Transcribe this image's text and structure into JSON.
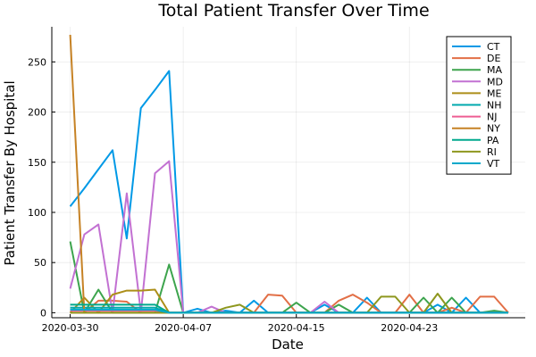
{
  "chart_data": {
    "type": "line",
    "title": "Total Patient Transfer Over Time",
    "xlabel": "Date",
    "ylabel": "Patient Transfer By Hospital",
    "x_tick_labels": [
      "2020-03-30",
      "2020-04-07",
      "2020-04-15",
      "2020-04-23"
    ],
    "x_tick_days": [
      0,
      8,
      16,
      24
    ],
    "x_range_days": [
      0,
      31
    ],
    "y_ticks": [
      0,
      50,
      100,
      150,
      200,
      250
    ],
    "ylim": [
      -5,
      285
    ],
    "grid": true,
    "legend_position": "top-right",
    "series": [
      {
        "name": "CT",
        "color": "#0099e6",
        "x": [
          0,
          1,
          2,
          3,
          4,
          5,
          6,
          7,
          8,
          9,
          10,
          11,
          12,
          13,
          14,
          15,
          16,
          17,
          18,
          19,
          20,
          21,
          22,
          23,
          24,
          25,
          26,
          27,
          28,
          29,
          30,
          31
        ],
        "values": [
          106,
          124,
          143,
          162,
          74,
          204,
          222,
          241,
          0,
          4,
          0,
          2,
          0,
          12,
          0,
          0,
          0,
          0,
          8,
          0,
          0,
          15,
          0,
          0,
          0,
          0,
          8,
          0,
          15,
          0,
          0,
          0
        ]
      },
      {
        "name": "DE",
        "color": "#e26f46",
        "x": [
          0,
          1,
          2,
          3,
          4,
          5,
          6,
          7,
          8,
          9,
          10,
          11,
          12,
          13,
          14,
          15,
          16,
          17,
          18,
          19,
          20,
          21,
          22,
          23,
          24,
          25,
          26,
          27,
          28,
          29,
          30,
          31
        ],
        "values": [
          0,
          0,
          12,
          12,
          11,
          0,
          0,
          0,
          0,
          0,
          0,
          0,
          0,
          0,
          18,
          17,
          0,
          0,
          0,
          12,
          18,
          10,
          0,
          0,
          18,
          0,
          0,
          5,
          0,
          16,
          16,
          0
        ]
      },
      {
        "name": "MA",
        "color": "#3da44d",
        "x": [
          0,
          1,
          2,
          3,
          4,
          5,
          6,
          7,
          8,
          9,
          10,
          11,
          12,
          13,
          14,
          15,
          16,
          17,
          18,
          19,
          20,
          21,
          22,
          23,
          24,
          25,
          26,
          27,
          28,
          29,
          30,
          31
        ],
        "values": [
          71,
          0,
          23,
          0,
          0,
          0,
          0,
          48,
          0,
          0,
          0,
          0,
          0,
          0,
          0,
          0,
          10,
          0,
          0,
          8,
          0,
          0,
          0,
          0,
          0,
          15,
          0,
          15,
          0,
          0,
          2,
          0
        ]
      },
      {
        "name": "MD",
        "color": "#c271d2",
        "x": [
          0,
          1,
          2,
          3,
          4,
          5,
          6,
          7,
          8,
          9,
          10,
          11,
          12,
          13,
          14,
          15,
          16,
          17,
          18,
          19,
          20,
          21,
          22,
          23,
          24,
          25,
          26,
          27,
          28,
          29,
          30,
          31
        ],
        "values": [
          24,
          78,
          88,
          0,
          119,
          0,
          139,
          151,
          0,
          0,
          6,
          0,
          0,
          0,
          0,
          0,
          0,
          0,
          11,
          0,
          0,
          0,
          0,
          0,
          0,
          0,
          0,
          0,
          0,
          0,
          0,
          0
        ]
      },
      {
        "name": "ME",
        "color": "#ac8e18",
        "x": [
          0,
          1,
          2,
          3,
          4,
          5,
          6,
          7,
          8,
          9,
          10,
          11,
          12,
          13,
          14,
          15,
          16,
          17,
          18,
          19,
          20,
          21,
          22,
          23,
          24,
          25,
          26,
          27,
          28,
          29,
          30,
          31
        ],
        "values": [
          0,
          15,
          0,
          18,
          22,
          22,
          23,
          0,
          0,
          0,
          0,
          0,
          0,
          0,
          0,
          0,
          0,
          0,
          0,
          0,
          0,
          0,
          0,
          0,
          0,
          0,
          0,
          0,
          0,
          0,
          0,
          0
        ]
      },
      {
        "name": "NH",
        "color": "#00a9ad",
        "x": [
          0,
          1,
          2,
          3,
          4,
          5,
          6,
          7,
          8,
          9,
          10,
          11,
          12,
          13,
          14,
          15,
          16,
          17,
          18,
          19,
          20,
          21,
          22,
          23,
          24,
          25,
          26,
          27,
          28,
          29,
          30,
          31
        ],
        "values": [
          5,
          5,
          5,
          5,
          5,
          5,
          5,
          0,
          0,
          0,
          0,
          0,
          0,
          0,
          0,
          0,
          0,
          0,
          0,
          0,
          0,
          0,
          0,
          0,
          0,
          0,
          0,
          0,
          0,
          0,
          0,
          0
        ]
      },
      {
        "name": "NJ",
        "color": "#ed5e93",
        "x": [
          0,
          1,
          2,
          3,
          4,
          5,
          6,
          7,
          8,
          9,
          10,
          11,
          12,
          13,
          14,
          15,
          16,
          17,
          18,
          19,
          20,
          21,
          22,
          23,
          24,
          25,
          26,
          27,
          28,
          29,
          30,
          31
        ],
        "values": [
          2,
          2,
          2,
          2,
          2,
          2,
          2,
          0,
          0,
          0,
          0,
          0,
          0,
          0,
          0,
          0,
          0,
          0,
          0,
          0,
          0,
          0,
          0,
          0,
          0,
          0,
          0,
          0,
          0,
          0,
          0,
          0
        ]
      },
      {
        "name": "NY",
        "color": "#c68225",
        "x": [
          0,
          1,
          2,
          3,
          4,
          5,
          6,
          7,
          8,
          9,
          10,
          11,
          12,
          13,
          14,
          15,
          16,
          17,
          18,
          19,
          20,
          21,
          22,
          23,
          24,
          25,
          26,
          27,
          28,
          29,
          30,
          31
        ],
        "values": [
          277,
          0,
          0,
          0,
          0,
          0,
          0,
          0,
          0,
          0,
          0,
          0,
          0,
          0,
          0,
          0,
          0,
          0,
          0,
          0,
          0,
          0,
          0,
          0,
          0,
          0,
          0,
          0,
          0,
          0,
          0,
          0
        ]
      },
      {
        "name": "PA",
        "color": "#00a98d",
        "x": [
          0,
          1,
          2,
          3,
          4,
          5,
          6,
          7,
          8,
          9,
          10,
          11,
          12,
          13,
          14,
          15,
          16,
          17,
          18,
          19,
          20,
          21,
          22,
          23,
          24,
          25,
          26,
          27,
          28,
          29,
          30,
          31
        ],
        "values": [
          8,
          8,
          8,
          8,
          8,
          8,
          8,
          0,
          0,
          0,
          0,
          0,
          0,
          0,
          0,
          0,
          0,
          0,
          0,
          0,
          0,
          0,
          0,
          0,
          0,
          0,
          0,
          0,
          0,
          0,
          0,
          0
        ]
      },
      {
        "name": "RI",
        "color": "#8e971e",
        "x": [
          0,
          1,
          2,
          3,
          4,
          5,
          6,
          7,
          8,
          9,
          10,
          11,
          12,
          13,
          14,
          15,
          16,
          17,
          18,
          19,
          20,
          21,
          22,
          23,
          24,
          25,
          26,
          27,
          28,
          29,
          30,
          31
        ],
        "values": [
          0,
          0,
          0,
          0,
          0,
          0,
          0,
          0,
          0,
          0,
          0,
          5,
          8,
          0,
          0,
          0,
          0,
          0,
          0,
          0,
          0,
          0,
          16,
          16,
          0,
          0,
          19,
          0,
          0,
          0,
          0,
          0
        ]
      },
      {
        "name": "VT",
        "color": "#00a8cb",
        "x": [
          0,
          1,
          2,
          3,
          4,
          5,
          6,
          7,
          8,
          9,
          10,
          11,
          12,
          13,
          14,
          15,
          16,
          17,
          18,
          19,
          20,
          21,
          22,
          23,
          24,
          25,
          26,
          27,
          28,
          29,
          30,
          31
        ],
        "values": [
          3,
          3,
          3,
          3,
          3,
          3,
          3,
          0,
          0,
          0,
          0,
          0,
          0,
          0,
          0,
          0,
          0,
          0,
          0,
          0,
          0,
          0,
          0,
          0,
          0,
          0,
          0,
          0,
          0,
          0,
          0,
          0
        ]
      }
    ]
  }
}
